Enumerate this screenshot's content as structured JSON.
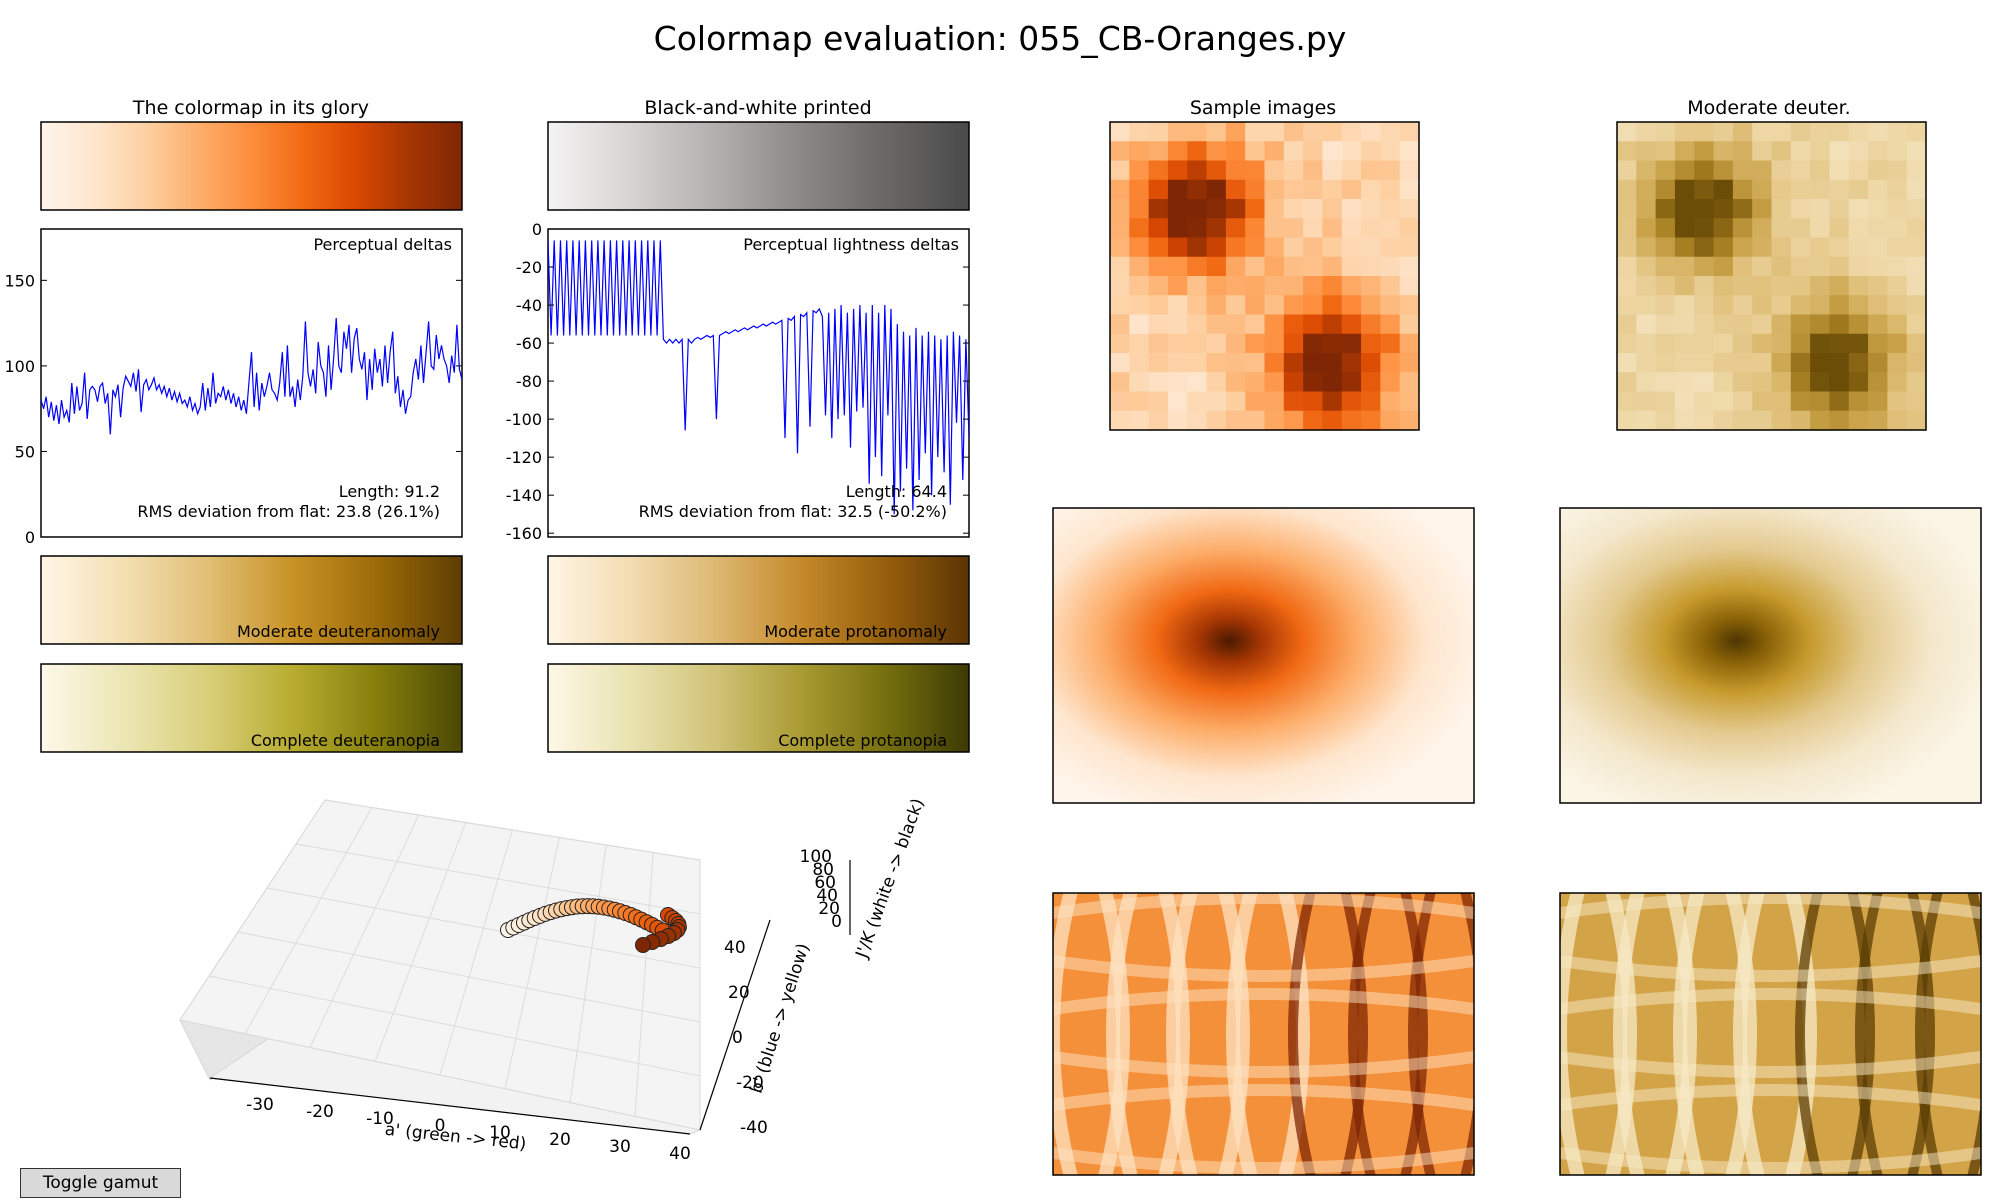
{
  "page": {
    "title": "Colormap evaluation: 055_CB-Oranges.py"
  },
  "colors": {
    "line": "#0000ff",
    "oranges": [
      "#fff5eb",
      "#fee6ce",
      "#fdd0a2",
      "#fdae6b",
      "#fd8d3c",
      "#f16913",
      "#d94801",
      "#a63603",
      "#7f2704"
    ],
    "gray": [
      "#f5f4f4",
      "#d5d3d2",
      "#b2b0ae",
      "#8b8988",
      "#6a6867",
      "#4a4a4a"
    ],
    "deut_moderate": [
      "#fff6e7",
      "#f3dfb1",
      "#e0be74",
      "#c89225",
      "#9b6a08",
      "#5c3d03"
    ],
    "prot_moderate": [
      "#fff5e6",
      "#f2dcb0",
      "#dcb872",
      "#c68a2a",
      "#975f0d",
      "#5b3503"
    ],
    "deut_complete": [
      "#fdf8ea",
      "#ece6b3",
      "#d8ce78",
      "#b7ac30",
      "#857e0c",
      "#4b4704"
    ],
    "prot_complete": [
      "#fdf8e7",
      "#e9e2b0",
      "#d0c377",
      "#aa9b33",
      "#77700f",
      "#3c3a04"
    ],
    "deuter_sample": [
      "#f7ecd4",
      "#efd9a9",
      "#e0c07a",
      "#c9a249",
      "#a57d21",
      "#6b4d07"
    ]
  },
  "panels": {
    "colormap_title": "The colormap in its glory",
    "bw_title": "Black-and-white printed",
    "samples_title": "Sample images",
    "deuter_title": "Moderate deuter.",
    "deut_moderate_label": "Moderate deuteranomaly",
    "prot_moderate_label": "Moderate protanomaly",
    "deut_complete_label": "Complete deuteranopia",
    "prot_complete_label": "Complete protanopia"
  },
  "controls": {
    "toggle_gamut": "Toggle gamut"
  },
  "chart_data": [
    {
      "type": "line",
      "title": "Perceptual deltas",
      "xlabel": "",
      "ylabel": "",
      "ylim": [
        0,
        180
      ],
      "yticks": [
        "0",
        "50",
        "100",
        "150"
      ],
      "annotations": [
        "Length: 91.2",
        "RMS deviation from flat: 23.8 (26.1%)"
      ],
      "series": [
        {
          "values": [
            80,
            75,
            82,
            70,
            79,
            68,
            77,
            66,
            80,
            70,
            74,
            67,
            90,
            72,
            88,
            74,
            78,
            96,
            69,
            86,
            88,
            86,
            79,
            88,
            90,
            78,
            84,
            60,
            86,
            82,
            89,
            70,
            87,
            94,
            91,
            88,
            96,
            85,
            98,
            73,
            89,
            92,
            86,
            89,
            93,
            86,
            89,
            84,
            88,
            82,
            87,
            80,
            85,
            79,
            84,
            78,
            80,
            76,
            82,
            74,
            78,
            72,
            76,
            90,
            74,
            87,
            76,
            96,
            78,
            84,
            82,
            88,
            80,
            86,
            78,
            84,
            76,
            82,
            74,
            80,
            72,
            90,
            108,
            76,
            96,
            74,
            90,
            82,
            88,
            96,
            86,
            84,
            80,
            90,
            108,
            82,
            112,
            82,
            88,
            76,
            92,
            80,
            94,
            126,
            96,
            88,
            98,
            84,
            114,
            100,
            96,
            82,
            112,
            86,
            104,
            128,
            100,
            96,
            120,
            110,
            124,
            96,
            116,
            122,
            104,
            98,
            108,
            80,
            104,
            86,
            110,
            96,
            104,
            88,
            112,
            90,
            108,
            120,
            84,
            94,
            76,
            86,
            72,
            80,
            82,
            96,
            104,
            92,
            112,
            90,
            108,
            126,
            100,
            98,
            118,
            104,
            112,
            104,
            100,
            90,
            106,
            96,
            124,
            98,
            92
          ]
        }
      ]
    },
    {
      "type": "line",
      "title": "Perceptual lightness deltas",
      "xlabel": "",
      "ylabel": "",
      "ylim": [
        -162,
        0
      ],
      "yticks": [
        "0",
        "-20",
        "-40",
        "-60",
        "-80",
        "-100",
        "-120",
        "-140",
        "-160"
      ],
      "annotations": [
        "Length: 64.4",
        "RMS deviation from flat: 32.5 (-50.2%)"
      ],
      "series": [
        {
          "values": [
            -6,
            -56,
            -6,
            -56,
            -6,
            -56,
            -6,
            -56,
            -6,
            -56,
            -6,
            -56,
            -6,
            -56,
            -6,
            -56,
            -6,
            -56,
            -6,
            -56,
            -6,
            -56,
            -6,
            -56,
            -6,
            -56,
            -6,
            -56,
            -6,
            -56,
            -6,
            -56,
            -6,
            -56,
            -6,
            -56,
            -6,
            -58,
            -60,
            -58,
            -60,
            -58,
            -60,
            -58,
            -106,
            -58,
            -60,
            -58,
            -57,
            -58,
            -57,
            -56,
            -57,
            -56,
            -100,
            -56,
            -55,
            -54,
            -55,
            -54,
            -53,
            -54,
            -53,
            -52,
            -53,
            -52,
            -51,
            -52,
            -51,
            -50,
            -51,
            -50,
            -49,
            -50,
            -49,
            -48,
            -110,
            -47,
            -48,
            -46,
            -118,
            -45,
            -46,
            -44,
            -104,
            -43,
            -44,
            -42,
            -46,
            -98,
            -44,
            -110,
            -42,
            -100,
            -40,
            -98,
            -44,
            -115,
            -42,
            -96,
            -40,
            -94,
            -44,
            -134,
            -40,
            -120,
            -44,
            -130,
            -40,
            -98,
            -42,
            -150,
            -50,
            -138,
            -54,
            -126,
            -56,
            -148,
            -52,
            -132,
            -56,
            -118,
            -54,
            -140,
            -56,
            -120,
            -58,
            -128,
            -56,
            -145,
            -54,
            -102,
            -56,
            -132,
            -58,
            -110
          ]
        }
      ]
    },
    {
      "type": "scatter",
      "title": "",
      "xlabel": "a' (green -> red)",
      "ylabel": "b' (blue -> yellow)",
      "zlabel": "J'/K (white -> black)",
      "xticks": [
        "-30",
        "-20",
        "-10",
        "0",
        "10",
        "20",
        "30",
        "40"
      ],
      "yticks": [
        "-40",
        "-20",
        "0",
        "20",
        "40"
      ],
      "zticks": [
        "0",
        "20",
        "40",
        "60",
        "80",
        "100"
      ],
      "note": "3D scatter of colormap in CAM02-UCS space; markers run from pale orange to dark brown"
    }
  ]
}
